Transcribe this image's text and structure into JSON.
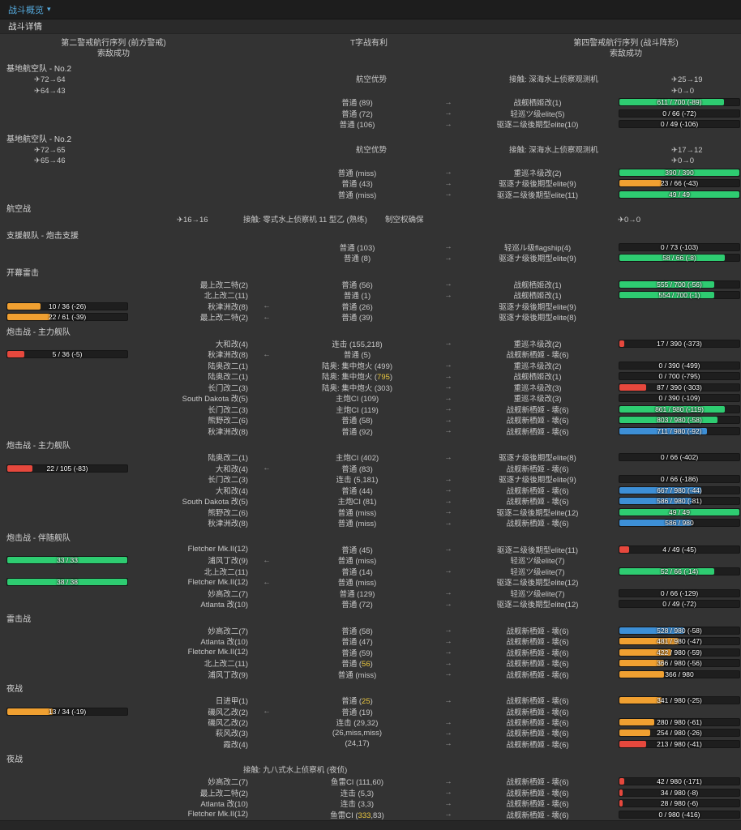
{
  "colors": {
    "green": "#2ecc71",
    "blue": "#3d8fd6",
    "orange": "#f0a031",
    "red": "#e6483d",
    "accent": "#55aadd",
    "crit": "#e8c63f"
  },
  "header": {
    "title": "战斗概览",
    "caret": "▾",
    "subtitle": "战斗详情"
  },
  "battle_info": {
    "left_formation": "第二警戒航行序列 (前方警戒)",
    "engagement": "T字战有利",
    "right_formation": "第四警戒航行序列 (战斗阵形)",
    "left_detection": "索敌成功",
    "right_detection": "索敌成功"
  },
  "sections": [
    {
      "label": "基地航空队 - No.2",
      "aerial": {
        "type": "landbase",
        "left": [
          "✈72→64",
          "✈64→43"
        ],
        "status": "航空优势",
        "contact": "接触: 深海水上侦察观测机",
        "right": [
          "✈25→19",
          "✈0→0"
        ]
      },
      "rows": [
        {
          "attack": "普通 (89)",
          "dir": "→",
          "enemy": "战舰栖姬改(1)",
          "right_bar": {
            "text": "611 / 700 (-89)",
            "pct": 87,
            "color": "green"
          }
        },
        {
          "attack": "普通 (72)",
          "dir": "→",
          "enemy": "轻巡ツ级elite(5)",
          "right_bar": {
            "text": "0 / 66 (-72)",
            "pct": 0,
            "color": "red"
          }
        },
        {
          "attack": "普通 (106)",
          "dir": "→",
          "enemy": "驱逐ニ级後期型elite(10)",
          "right_bar": {
            "text": "0 / 49 (-106)",
            "pct": 0,
            "color": "red"
          }
        }
      ]
    },
    {
      "label": "基地航空队 - No.2",
      "aerial": {
        "type": "landbase",
        "left": [
          "✈72→65",
          "✈65→46"
        ],
        "status": "航空优势",
        "contact": "接触: 深海水上侦察观测机",
        "right": [
          "✈17→12",
          "✈0→0"
        ]
      },
      "rows": [
        {
          "attack": "普通 (miss)",
          "dir": "→",
          "enemy": "重巡ネ级改(2)",
          "right_bar": {
            "text": "390 / 390",
            "pct": 100,
            "color": "green"
          }
        },
        {
          "attack": "普通 (43)",
          "dir": "→",
          "enemy": "驱逐ナ级後期型elite(9)",
          "right_bar": {
            "text": "23 / 66 (-43)",
            "pct": 35,
            "color": "orange"
          }
        },
        {
          "attack": "普通 (miss)",
          "dir": "→",
          "enemy": "驱逐ニ级後期型elite(11)",
          "right_bar": {
            "text": "49 / 49",
            "pct": 100,
            "color": "green"
          }
        }
      ]
    },
    {
      "label": "航空战",
      "aerial": {
        "type": "airbattle",
        "planes": "✈16→16",
        "contact": "接触: 零式水上侦察机 11 型乙 (熟练)",
        "status": "制空权确保",
        "right": "✈0→0"
      },
      "rows": []
    },
    {
      "label": "支援舰队 - 炮击支援",
      "rows": [
        {
          "attack": "普通 (103)",
          "dir": "→",
          "enemy": "轻巡ル级flagship(4)",
          "right_bar": {
            "text": "0 / 73 (-103)",
            "pct": 0,
            "color": "red"
          }
        },
        {
          "attack": "普通 (8)",
          "dir": "→",
          "enemy": "驱逐ナ级後期型elite(9)",
          "right_bar": {
            "text": "58 / 66 (-8)",
            "pct": 88,
            "color": "green"
          }
        }
      ]
    },
    {
      "label": "开幕雷击",
      "rows": [
        {
          "ship": "最上改二特(2)",
          "attack": "普通 (56)",
          "dir": "→",
          "enemy": "战舰栖姬改(1)",
          "right_bar": {
            "text": "555 / 700 (-56)",
            "pct": 79,
            "color": "green"
          }
        },
        {
          "ship": "北上改二(11)",
          "attack": "普通 (1)",
          "dir": "→",
          "enemy": "战舰栖姬改(1)",
          "right_bar": {
            "text": "554 / 700 (-1)",
            "pct": 79,
            "color": "green"
          }
        },
        {
          "left_bar": {
            "text": "10 / 36 (-26)",
            "pct": 28,
            "color": "orange"
          },
          "ship": "秋津洲改(8)",
          "dir": "←",
          "attack": "普通 (26)",
          "enemy": "驱逐ナ级後期型elite(9)"
        },
        {
          "left_bar": {
            "text": "22 / 61 (-39)",
            "pct": 36,
            "color": "orange"
          },
          "ship": "最上改二特(2)",
          "dir": "←",
          "attack": "普通 (39)",
          "enemy": "驱逐ナ级後期型elite(8)"
        }
      ]
    },
    {
      "label": "炮击战 - 主力舰队",
      "rows": [
        {
          "ship": "大和改(4)",
          "attack": "连击 (155,218)",
          "dir": "→",
          "enemy": "重巡ネ级改(2)",
          "right_bar": {
            "text": "17 / 390 (-373)",
            "pct": 4,
            "color": "red"
          }
        },
        {
          "left_bar": {
            "text": "5 / 36 (-5)",
            "pct": 14,
            "color": "red"
          },
          "ship": "秋津洲改(8)",
          "dir": "←",
          "attack": "普通 (5)",
          "enemy": "战舰新栖姬 - 壊(6)"
        },
        {
          "ship": "陆奥改二(1)",
          "attack": "陆奥: 集中炮火 (499)",
          "dir": "→",
          "enemy": "重巡ネ级改(2)",
          "right_bar": {
            "text": "0 / 390 (-499)",
            "pct": 0,
            "color": "red"
          }
        },
        {
          "ship": "陆奥改二(1)",
          "attack": "陆奥: 集中炮火 (795)",
          "crit": "795",
          "dir": "→",
          "enemy": "战舰栖姬改(1)",
          "right_bar": {
            "text": "0 / 700 (-795)",
            "pct": 0,
            "color": "red"
          }
        },
        {
          "ship": "长门改二(3)",
          "attack": "陆奥: 集中炮火 (303)",
          "dir": "→",
          "enemy": "重巡ネ级改(3)",
          "right_bar": {
            "text": "87 / 390 (-303)",
            "pct": 22,
            "color": "red"
          }
        },
        {
          "ship": "South Dakota 改(5)",
          "attack": "主炮CI (109)",
          "dir": "→",
          "enemy": "重巡ネ级改(3)",
          "right_bar": {
            "text": "0 / 390 (-109)",
            "pct": 0,
            "color": "red"
          }
        },
        {
          "ship": "长门改二(3)",
          "attack": "主炮CI (119)",
          "dir": "→",
          "enemy": "战舰新栖姬 - 壊(6)",
          "right_bar": {
            "text": "861 / 980 (-119)",
            "pct": 88,
            "color": "green"
          }
        },
        {
          "ship": "熊野改二(6)",
          "attack": "普通 (58)",
          "dir": "→",
          "enemy": "战舰新栖姬 - 壊(6)",
          "right_bar": {
            "text": "803 / 980 (-58)",
            "pct": 82,
            "color": "green"
          }
        },
        {
          "ship": "秋津洲改(8)",
          "attack": "普通 (92)",
          "dir": "→",
          "enemy": "战舰新栖姬 - 壊(6)",
          "right_bar": {
            "text": "711 / 980 (-92)",
            "pct": 73,
            "color": "blue"
          }
        }
      ]
    },
    {
      "label": "炮击战 - 主力舰队",
      "rows": [
        {
          "ship": "陆奥改二(1)",
          "attack": "主炮CI (402)",
          "dir": "→",
          "enemy": "驱逐ナ级後期型elite(8)",
          "right_bar": {
            "text": "0 / 66 (-402)",
            "pct": 0,
            "color": "red"
          }
        },
        {
          "left_bar": {
            "text": "22 / 105 (-83)",
            "pct": 21,
            "color": "red"
          },
          "ship": "大和改(4)",
          "dir": "←",
          "attack": "普通 (83)",
          "enemy": "战舰新栖姬 - 壊(6)"
        },
        {
          "ship": "长门改二(3)",
          "attack": "连击 (5,181)",
          "dir": "→",
          "enemy": "驱逐ナ级後期型elite(9)",
          "right_bar": {
            "text": "0 / 66 (-186)",
            "pct": 0,
            "color": "red"
          }
        },
        {
          "ship": "大和改(4)",
          "attack": "普通 (44)",
          "dir": "→",
          "enemy": "战舰新栖姬 - 壊(6)",
          "right_bar": {
            "text": "667 / 980 (-44)",
            "pct": 68,
            "color": "blue"
          }
        },
        {
          "ship": "South Dakota 改(5)",
          "attack": "主炮CI (81)",
          "dir": "→",
          "enemy": "战舰新栖姬 - 壊(6)",
          "right_bar": {
            "text": "586 / 980 (-81)",
            "pct": 60,
            "color": "blue"
          }
        },
        {
          "ship": "熊野改二(6)",
          "attack": "普通 (miss)",
          "dir": "→",
          "enemy": "驱逐ニ级後期型elite(12)",
          "right_bar": {
            "text": "49 / 49",
            "pct": 100,
            "color": "green"
          }
        },
        {
          "ship": "秋津洲改(8)",
          "attack": "普通 (miss)",
          "dir": "→",
          "enemy": "战舰新栖姬 - 壊(6)",
          "right_bar": {
            "text": "586 / 980",
            "pct": 60,
            "color": "blue"
          }
        }
      ]
    },
    {
      "label": "炮击战 - 伴随舰队",
      "rows": [
        {
          "ship": "Fletcher Mk.II(12)",
          "attack": "普通 (45)",
          "dir": "→",
          "enemy": "驱逐ニ级後期型elite(11)",
          "right_bar": {
            "text": "4 / 49 (-45)",
            "pct": 8,
            "color": "red"
          }
        },
        {
          "left_bar": {
            "text": "33 / 33",
            "pct": 100,
            "color": "green"
          },
          "ship": "浦风丁改(9)",
          "dir": "←",
          "attack": "普通 (miss)",
          "enemy": "轻巡ツ级elite(7)"
        },
        {
          "ship": "北上改二(11)",
          "attack": "普通 (14)",
          "dir": "→",
          "enemy": "轻巡ツ级elite(7)",
          "right_bar": {
            "text": "52 / 66 (-14)",
            "pct": 79,
            "color": "green"
          }
        },
        {
          "left_bar": {
            "text": "38 / 38",
            "pct": 100,
            "color": "green"
          },
          "ship": "Fletcher Mk.II(12)",
          "dir": "←",
          "attack": "普通 (miss)",
          "enemy": "驱逐ニ级後期型elite(12)"
        },
        {
          "ship": "妙高改二(7)",
          "attack": "普通 (129)",
          "dir": "→",
          "enemy": "轻巡ツ级elite(7)",
          "right_bar": {
            "text": "0 / 66 (-129)",
            "pct": 0,
            "color": "red"
          }
        },
        {
          "ship": "Atlanta 改(10)",
          "attack": "普通 (72)",
          "dir": "→",
          "enemy": "驱逐ニ级後期型elite(12)",
          "right_bar": {
            "text": "0 / 49 (-72)",
            "pct": 0,
            "color": "red"
          }
        }
      ]
    },
    {
      "label": "雷击战",
      "rows": [
        {
          "ship": "妙高改二(7)",
          "attack": "普通 (58)",
          "dir": "→",
          "enemy": "战舰新栖姬 - 壊(6)",
          "right_bar": {
            "text": "528 / 980 (-58)",
            "pct": 54,
            "color": "blue"
          }
        },
        {
          "ship": "Atlanta 改(10)",
          "attack": "普通 (47)",
          "dir": "→",
          "enemy": "战舰新栖姬 - 壊(6)",
          "right_bar": {
            "text": "481 / 980 (-47)",
            "pct": 49,
            "color": "orange"
          }
        },
        {
          "ship": "Fletcher Mk.II(12)",
          "attack": "普通 (59)",
          "dir": "→",
          "enemy": "战舰新栖姬 - 壊(6)",
          "right_bar": {
            "text": "422 / 980 (-59)",
            "pct": 43,
            "color": "orange"
          }
        },
        {
          "ship": "北上改二(11)",
          "attack": "普通 (56)",
          "crit": "56",
          "dir": "→",
          "enemy": "战舰新栖姬 - 壊(6)",
          "right_bar": {
            "text": "366 / 980 (-56)",
            "pct": 37,
            "color": "orange"
          }
        },
        {
          "ship": "浦风丁改(9)",
          "attack": "普通 (miss)",
          "dir": "→",
          "enemy": "战舰新栖姬 - 壊(6)",
          "right_bar": {
            "text": "366 / 980",
            "pct": 37,
            "color": "orange"
          }
        }
      ]
    },
    {
      "label": "夜战",
      "rows": [
        {
          "ship": "日进甲(1)",
          "attack": "普通 (25)",
          "crit": "25",
          "dir": "→",
          "enemy": "战舰新栖姬 - 壊(6)",
          "right_bar": {
            "text": "341 / 980 (-25)",
            "pct": 35,
            "color": "orange"
          }
        },
        {
          "left_bar": {
            "text": "13 / 34 (-19)",
            "pct": 38,
            "color": "orange"
          },
          "ship": "磯风乙改(2)",
          "dir": "←",
          "attack": "普通 (19)",
          "enemy": "战舰新栖姬 - 壊(6)"
        },
        {
          "ship": "磯风乙改(2)",
          "attack": "连击 (29,32)",
          "dir": "→",
          "enemy": "战舰新栖姬 - 壊(6)",
          "right_bar": {
            "text": "280 / 980 (-61)",
            "pct": 29,
            "color": "orange"
          }
        },
        {
          "ship": "萩风改(3)",
          "attack": "(26,miss,miss)",
          "dir": "→",
          "enemy": "战舰新栖姬 - 壊(6)",
          "right_bar": {
            "text": "254 / 980 (-26)",
            "pct": 26,
            "color": "orange"
          }
        },
        {
          "ship": "霞改(4)",
          "attack": "(24,17)",
          "dir": "→",
          "enemy": "战舰新栖姬 - 壊(6)",
          "right_bar": {
            "text": "213 / 980 (-41)",
            "pct": 22,
            "color": "red"
          }
        }
      ]
    },
    {
      "label": "夜战",
      "aerial": {
        "type": "nightcontact",
        "contact": "接触: 九八式水上侦察机 (夜侦)"
      },
      "rows": [
        {
          "ship": "妙高改二(7)",
          "attack": "鱼雷CI (111,60)",
          "dir": "→",
          "enemy": "战舰新栖姬 - 壊(6)",
          "right_bar": {
            "text": "42 / 980 (-171)",
            "pct": 4,
            "color": "red"
          }
        },
        {
          "ship": "最上改二特(2)",
          "attack": "连击 (5,3)",
          "dir": "→",
          "enemy": "战舰新栖姬 - 壊(6)",
          "right_bar": {
            "text": "34 / 980 (-8)",
            "pct": 3,
            "color": "red"
          }
        },
        {
          "ship": "Atlanta 改(10)",
          "attack": "连击 (3,3)",
          "dir": "→",
          "enemy": "战舰新栖姬 - 壊(6)",
          "right_bar": {
            "text": "28 / 980 (-6)",
            "pct": 3,
            "color": "red"
          }
        },
        {
          "ship": "Fletcher Mk.II(12)",
          "attack": "鱼雷CI (333,83)",
          "crit": "333",
          "dir": "→",
          "enemy": "战舰新栖姬 - 壊(6)",
          "right_bar": {
            "text": "0 / 980 (-416)",
            "pct": 0,
            "color": "red"
          }
        }
      ]
    }
  ]
}
